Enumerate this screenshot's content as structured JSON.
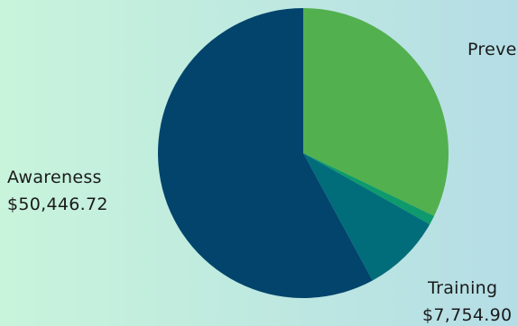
{
  "chart_data": {
    "type": "pie",
    "title": "",
    "start_angle_deg": 0,
    "direction": "clockwise",
    "slices": [
      {
        "label": "Preve",
        "value": 28000,
        "value_text": "",
        "color": "#52b04e"
      },
      {
        "label": "",
        "value": 900,
        "value_text": "",
        "color": "#0e9a6c"
      },
      {
        "label": "Training",
        "value": 7754.9,
        "value_text": "$7,754.90",
        "color": "#026d7a"
      },
      {
        "label": "Awareness",
        "value": 50446.72,
        "value_text": "$50,446.72",
        "color": "#02446c"
      }
    ]
  }
}
